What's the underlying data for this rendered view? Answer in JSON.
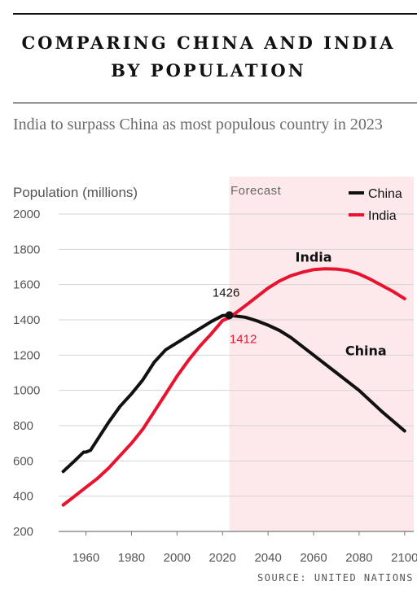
{
  "header": {
    "title_line1": "COMPARING CHINA AND INDIA",
    "title_line2": "BY POPULATION",
    "subtitle": "India to surpass China as most populous country in 2023"
  },
  "source": "SOURCE: UNITED NATIONS",
  "chart_data": {
    "type": "line",
    "ylabel": "Population (millions)",
    "ylim": [
      200,
      2000
    ],
    "yticks": [
      200,
      400,
      600,
      800,
      1000,
      1200,
      1400,
      1600,
      1800,
      2000
    ],
    "xlim": [
      1948,
      2104
    ],
    "xticks": [
      1960,
      1980,
      2000,
      2020,
      2040,
      2060,
      2080,
      2100
    ],
    "grid": true,
    "legend": "top-right",
    "forecast_region": {
      "label": "Forecast",
      "from": 2023,
      "to": 2104,
      "color": "#fde9ec"
    },
    "annotations": {
      "crossing": {
        "x": 2023,
        "china_value": "1426",
        "india_value": "1412"
      },
      "series_labels": [
        {
          "series": "India",
          "x": 2060,
          "y": 1730
        },
        {
          "series": "China",
          "x": 2083,
          "y": 1200
        }
      ]
    },
    "series": [
      {
        "name": "China",
        "color": "#111111",
        "x": [
          1950,
          1955,
          1959,
          1960,
          1962,
          1965,
          1970,
          1975,
          1980,
          1985,
          1990,
          1995,
          2000,
          2005,
          2010,
          2015,
          2020,
          2023,
          2030,
          2035,
          2040,
          2045,
          2050,
          2060,
          2070,
          2080,
          2090,
          2100
        ],
        "values": [
          540,
          600,
          650,
          650,
          660,
          720,
          820,
          910,
          980,
          1060,
          1160,
          1230,
          1270,
          1310,
          1350,
          1390,
          1424,
          1426,
          1415,
          1395,
          1370,
          1340,
          1300,
          1200,
          1100,
          1000,
          880,
          770
        ]
      },
      {
        "name": "India",
        "color": "#e8132f",
        "x": [
          1950,
          1955,
          1960,
          1965,
          1970,
          1975,
          1980,
          1985,
          1990,
          1995,
          2000,
          2005,
          2010,
          2015,
          2020,
          2023,
          2030,
          2035,
          2040,
          2045,
          2050,
          2055,
          2060,
          2065,
          2070,
          2075,
          2080,
          2085,
          2090,
          2095,
          2100
        ],
        "values": [
          350,
          400,
          450,
          500,
          560,
          630,
          700,
          780,
          880,
          980,
          1080,
          1170,
          1250,
          1320,
          1396,
          1412,
          1480,
          1530,
          1580,
          1620,
          1650,
          1670,
          1685,
          1690,
          1688,
          1680,
          1660,
          1630,
          1595,
          1560,
          1520
        ]
      }
    ]
  }
}
